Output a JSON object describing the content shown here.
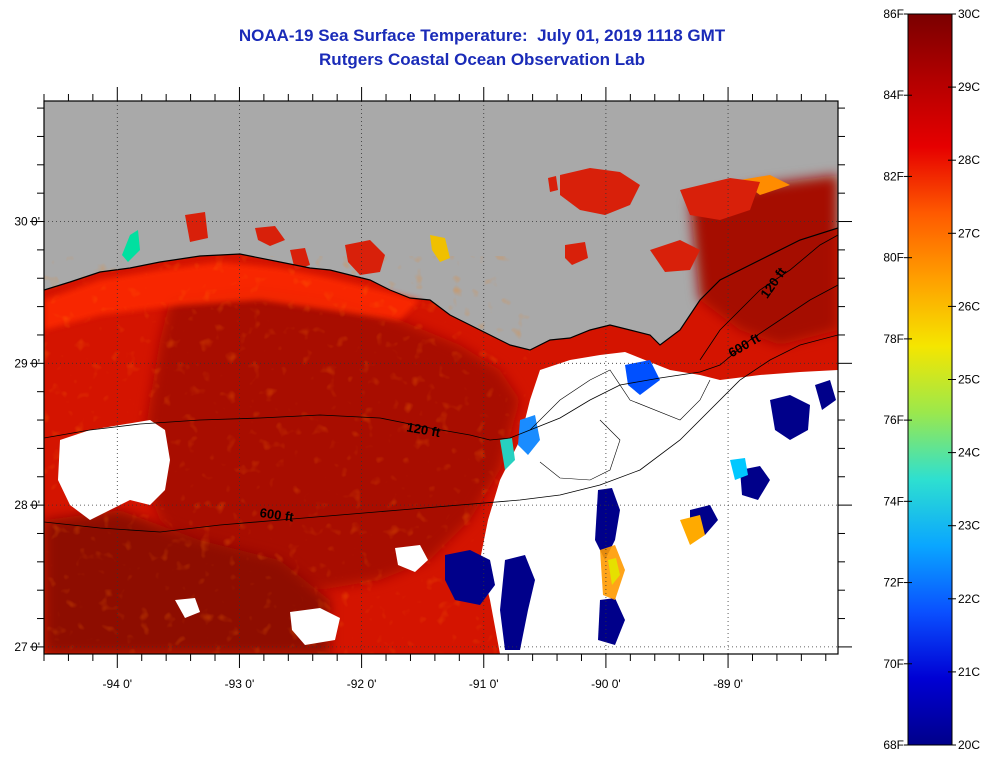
{
  "header": {
    "title_line1": "NOAA-19 Sea Surface Temperature:  July 01, 2019 1118 GMT",
    "title_line2": "Rutgers Coastal Ocean Observation Lab"
  },
  "map": {
    "lon_range": [
      -94.6,
      -88.1
    ],
    "lat_range": [
      26.95,
      30.85
    ],
    "x_ticks": [
      {
        "value": -94,
        "label": "-94 0'"
      },
      {
        "value": -93,
        "label": "-93 0'"
      },
      {
        "value": -92,
        "label": "-92 0'"
      },
      {
        "value": -91,
        "label": "-91 0'"
      },
      {
        "value": -90,
        "label": "-90 0'"
      },
      {
        "value": -89,
        "label": "-89 0'"
      }
    ],
    "y_ticks": [
      {
        "value": 30,
        "label": "30 0'"
      },
      {
        "value": 29,
        "label": "29 0'"
      },
      {
        "value": 28,
        "label": "28 0'"
      },
      {
        "value": 27,
        "label": "27 0'"
      }
    ],
    "contours": [
      {
        "label": "120 ft",
        "lon": -91.5,
        "lat": 28.5,
        "rotate": 10
      },
      {
        "label": "600 ft",
        "lon": -92.7,
        "lat": 27.9,
        "rotate": 8
      },
      {
        "label": "120 ft",
        "lon": -88.6,
        "lat": 29.55,
        "rotate": -55
      },
      {
        "label": "600 ft",
        "lon": -88.85,
        "lat": 29.1,
        "rotate": -30
      }
    ],
    "land_color": "#a9a9a9",
    "cloud_color": "#ffffff"
  },
  "colorbar": {
    "fahrenheit_labels": [
      "86F",
      "84F",
      "82F",
      "80F",
      "78F",
      "76F",
      "74F",
      "72F",
      "70F",
      "68F"
    ],
    "celsius_labels": [
      "30C",
      "29C",
      "28C",
      "27C",
      "26C",
      "25C",
      "24C",
      "23C",
      "22C",
      "21C",
      "20C"
    ],
    "gradient_stops": [
      "#7a0000",
      "#b30000",
      "#e60000",
      "#ff5a00",
      "#ffa000",
      "#f5e600",
      "#9be84c",
      "#2ee0d0",
      "#0aa6ff",
      "#0a50ff",
      "#0000d4",
      "#00008a"
    ]
  }
}
